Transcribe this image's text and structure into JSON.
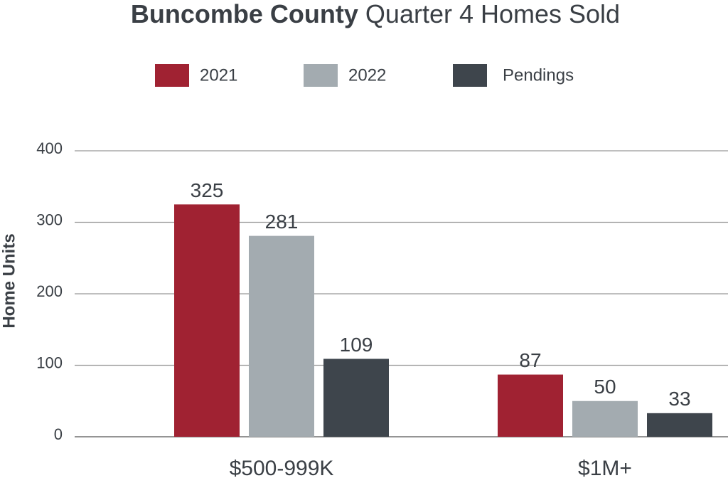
{
  "chart_data": {
    "type": "bar",
    "title": [
      "Buncombe County",
      "Quarter 4 Homes Sold"
    ],
    "y_label": "Home Units",
    "categories": [
      "$500-999K",
      "$1M+"
    ],
    "series": [
      {
        "name": "2021",
        "color": "#a02232",
        "values": [
          325,
          87
        ]
      },
      {
        "name": "2022",
        "color": "#a3abb0",
        "values": [
          281,
          50
        ]
      },
      {
        "name": "Pendings",
        "color": "#3e454c",
        "values": [
          109,
          33
        ]
      }
    ],
    "ylim": [
      0,
      400
    ],
    "yticks": [
      0,
      100,
      200,
      300,
      400
    ],
    "grid": true,
    "legend": "top"
  }
}
